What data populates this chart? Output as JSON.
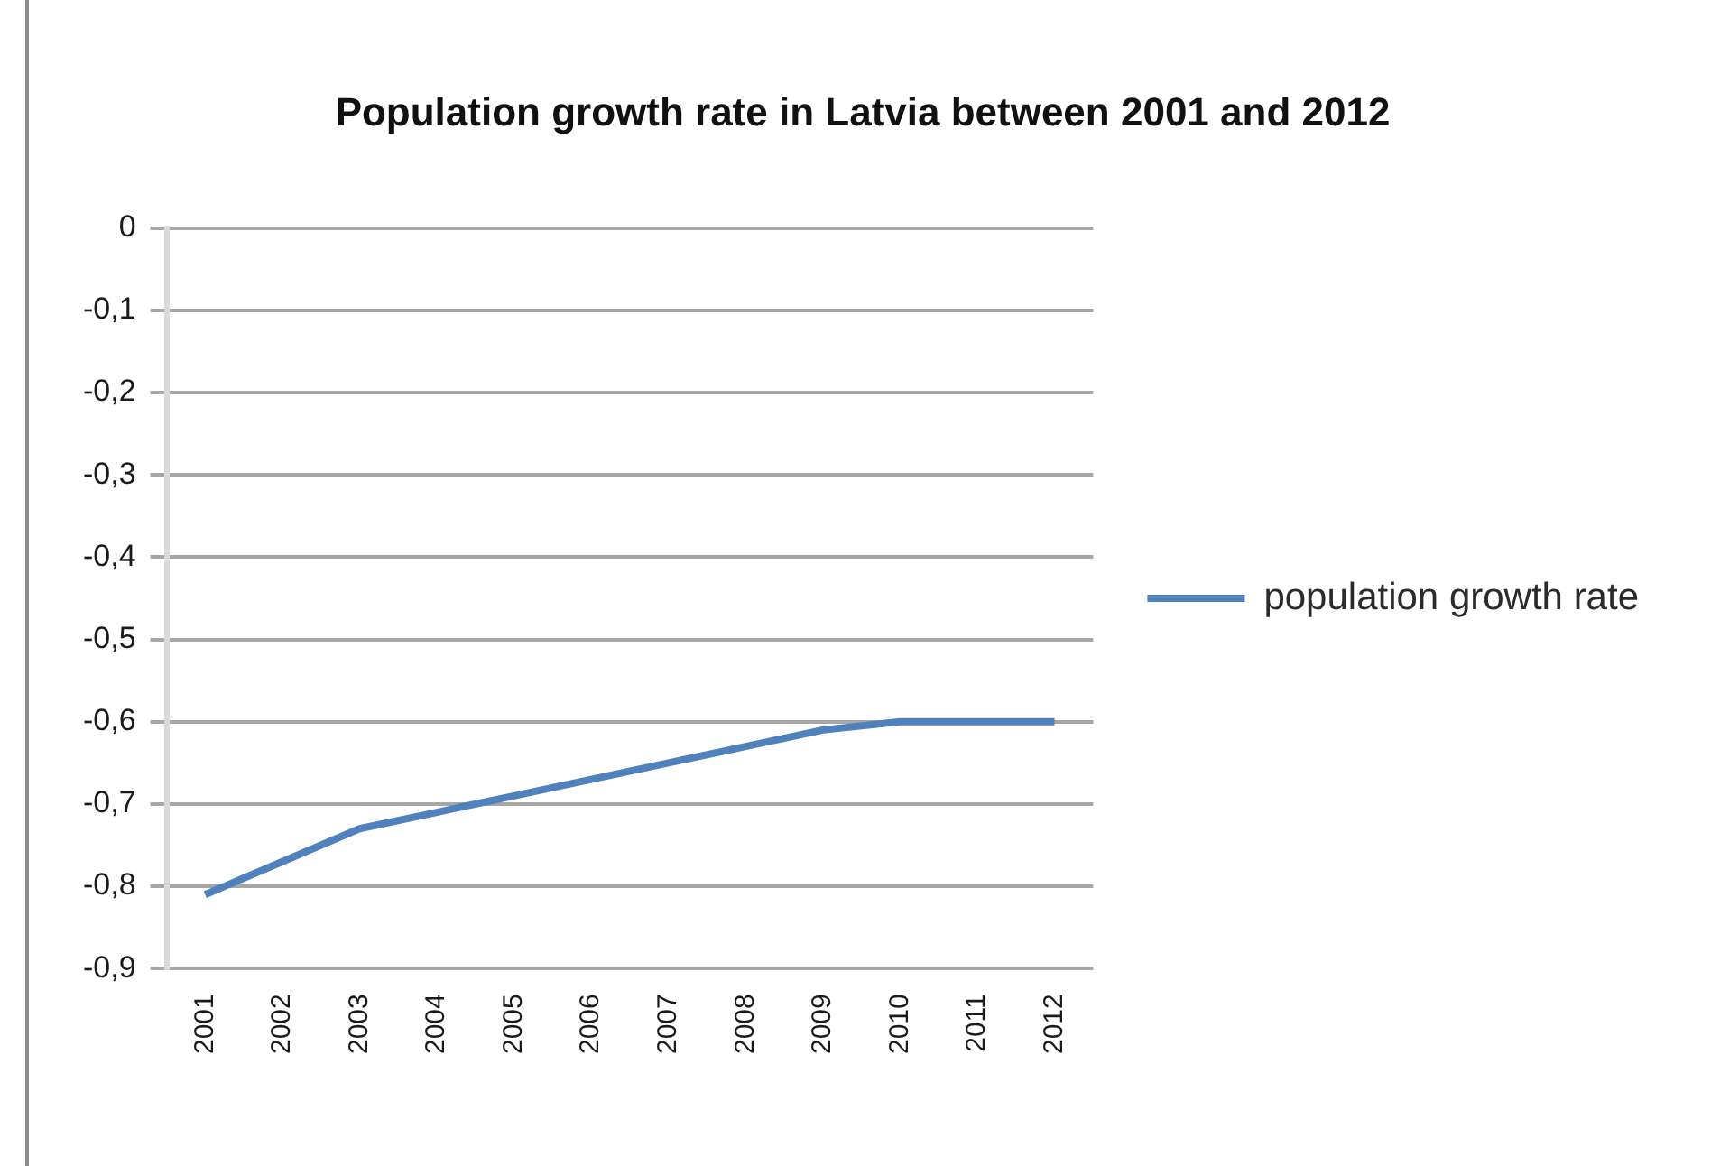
{
  "chart_data": {
    "type": "line",
    "title": "Population growth rate in Latvia between 2001 and 2012",
    "categories": [
      "2001",
      "2002",
      "2003",
      "2004",
      "2005",
      "2006",
      "2007",
      "2008",
      "2009",
      "2010",
      "2011",
      "2012"
    ],
    "series": [
      {
        "name": "population growth rate",
        "color": "#4f81bd",
        "values": [
          -0.81,
          -0.77,
          -0.73,
          -0.71,
          -0.69,
          -0.67,
          -0.65,
          -0.63,
          -0.61,
          -0.6,
          -0.6,
          -0.6
        ]
      }
    ],
    "ylim": [
      -0.9,
      0
    ],
    "yticks": [
      0,
      {
        "value": -0.1,
        "label": "-0,1"
      },
      {
        "value": -0.2,
        "label": "-0,2"
      },
      {
        "value": -0.3,
        "label": "-0,3"
      },
      {
        "value": -0.4,
        "label": "-0,4"
      },
      {
        "value": -0.5,
        "label": "-0,5"
      },
      {
        "value": -0.6,
        "label": "-0,6"
      },
      {
        "value": -0.7,
        "label": "-0,7"
      },
      {
        "value": -0.8,
        "label": "-0,8"
      },
      {
        "value": -0.9,
        "label": "-0,9"
      }
    ],
    "grid": "y",
    "legend": "right",
    "marker": "none"
  }
}
